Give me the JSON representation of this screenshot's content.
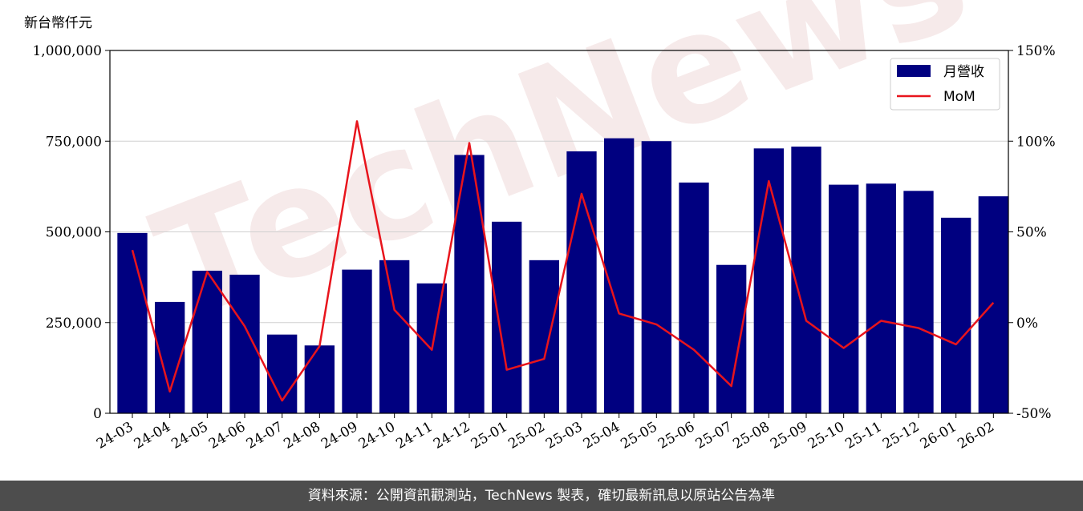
{
  "watermark": "TechNews",
  "footer_text": "資料來源：公開資訊觀測站，TechNews 製表，確切最新訊息以原站公告為準",
  "chart_data": {
    "type": "bar",
    "ylabel": "新台幣仟元",
    "categories": [
      "24-03",
      "24-04",
      "24-05",
      "24-06",
      "24-07",
      "24-08",
      "24-09",
      "24-10",
      "24-11",
      "24-12",
      "25-01",
      "25-02",
      "25-03",
      "25-04",
      "25-05",
      "25-06",
      "25-07",
      "25-08",
      "25-09",
      "25-10",
      "25-11",
      "25-12",
      "26-01",
      "26-02"
    ],
    "series": [
      {
        "name": "月營收",
        "type": "bar",
        "axis": "left",
        "color": "#000080",
        "values": [
          497000,
          307000,
          393000,
          382000,
          217000,
          187000,
          396000,
          422000,
          358000,
          712000,
          528000,
          422000,
          722000,
          758000,
          750000,
          636000,
          409000,
          730000,
          735000,
          630000,
          633000,
          613000,
          539000,
          598000
        ]
      },
      {
        "name": "MoM",
        "type": "line",
        "axis": "right",
        "color": "#e8141c",
        "values": [
          40,
          -38,
          28,
          -2,
          -43,
          -13,
          111,
          7,
          -15,
          99,
          -26,
          -20,
          71,
          5,
          -1,
          -15,
          -35,
          78,
          1,
          -14,
          1,
          -3,
          -12,
          11
        ]
      }
    ],
    "ylim": [
      0,
      1000000
    ],
    "yticks": [
      0,
      250000,
      500000,
      750000,
      1000000
    ],
    "ytick_labels": [
      "0",
      "250,000",
      "500,000",
      "750,000",
      "1,000,000"
    ],
    "y2lim": [
      -50,
      150
    ],
    "y2ticks": [
      -50,
      0,
      50,
      100,
      150
    ],
    "y2tick_labels": [
      "-50%",
      "0%",
      "50%",
      "100%",
      "150%"
    ],
    "grid": true,
    "legend_position": "top-right"
  }
}
